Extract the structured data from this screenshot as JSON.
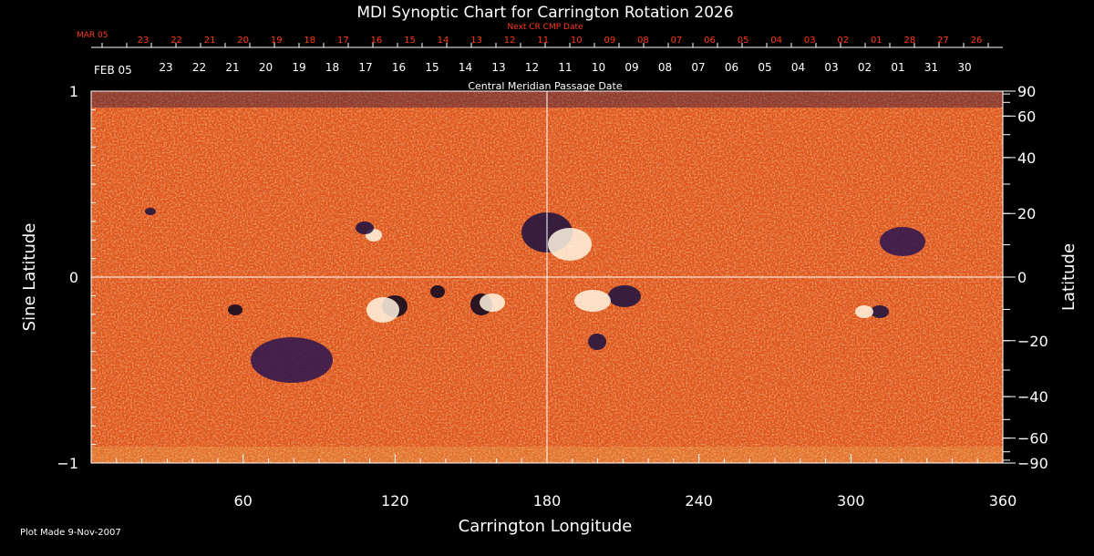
{
  "chart_data": {
    "type": "heatmap",
    "title": "MDI Synoptic Chart for Carrington Rotation 2026",
    "xlabel": "Carrington Longitude",
    "ylabel_left": "Sine Latitude",
    "ylabel_right": "Latitude",
    "x_ticks": [
      "60",
      "120",
      "180",
      "240",
      "300",
      "360"
    ],
    "x_tick_values": [
      60,
      120,
      180,
      240,
      300,
      360
    ],
    "xlim": [
      0,
      360
    ],
    "ylim": [
      -1,
      1
    ],
    "y_left_ticks": [
      "1",
      "0",
      "−1"
    ],
    "y_left_tick_values": [
      1,
      0,
      -1
    ],
    "y_right_ticks": [
      "90",
      "60",
      "40",
      "20",
      "0",
      "−20",
      "−40",
      "−60",
      "−90"
    ],
    "y_right_tick_values": [
      90,
      60,
      40,
      20,
      0,
      -20,
      -40,
      -60,
      -90
    ],
    "top_axis_label": "Central Meridian Passage Date",
    "top_axis_start": "FEB 05",
    "top_axis_dates": [
      "23",
      "22",
      "21",
      "20",
      "19",
      "18",
      "17",
      "16",
      "15",
      "14",
      "13",
      "12",
      "11",
      "10",
      "09",
      "08",
      "07",
      "06",
      "05",
      "04",
      "03",
      "02",
      "01",
      "31",
      "30"
    ],
    "next_cr_label": "Next CR CMP Date",
    "next_cr_start": "MAR 05",
    "next_cr_dates": [
      "23",
      "22",
      "21",
      "20",
      "19",
      "18",
      "17",
      "16",
      "15",
      "14",
      "13",
      "12",
      "11",
      "10",
      "09",
      "08",
      "07",
      "06",
      "05",
      "04",
      "03",
      "02",
      "01",
      "28",
      "27",
      "26"
    ],
    "colors": {
      "background": "#000000",
      "field_base": "#e0521a",
      "positive": "#ffffff",
      "negative": "#1a1040",
      "next_cr_text": "#ff3a1a"
    }
  },
  "footer": "Plot Made  9-Nov-2007"
}
